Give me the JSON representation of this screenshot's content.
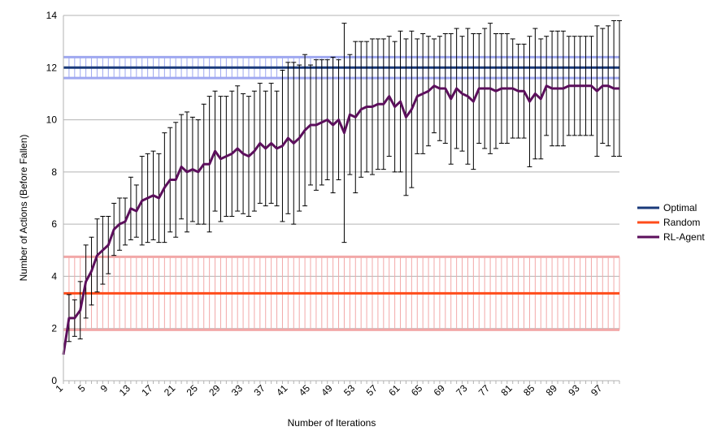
{
  "chart_data": {
    "type": "line",
    "xlabel": "Number of Iterations",
    "ylabel": "Number of Actions (Before Fallen)",
    "ylim": [
      0,
      14
    ],
    "yticks": [
      0,
      2,
      4,
      6,
      8,
      10,
      12,
      14
    ],
    "xlim": [
      1,
      100
    ],
    "xticks": [
      1,
      5,
      9,
      13,
      17,
      21,
      25,
      29,
      33,
      37,
      41,
      45,
      49,
      53,
      57,
      61,
      65,
      69,
      73,
      77,
      81,
      85,
      89,
      93,
      97
    ],
    "grid": "horizontal",
    "legend_position": "right",
    "series": [
      {
        "name": "Optimal",
        "color": "#1a3a7a",
        "band_color": "#9fa8f0",
        "value": 12,
        "error": 0.4
      },
      {
        "name": "Random",
        "color": "#ff4c1a",
        "band_color": "#f2a8a8",
        "value": 3.35,
        "error": 1.4
      },
      {
        "name": "RL-Agent",
        "color": "#5c0f5c",
        "x": [
          1,
          2,
          3,
          4,
          5,
          6,
          7,
          8,
          9,
          10,
          11,
          12,
          13,
          14,
          15,
          16,
          17,
          18,
          19,
          20,
          21,
          22,
          23,
          24,
          25,
          26,
          27,
          28,
          29,
          30,
          31,
          32,
          33,
          34,
          35,
          36,
          37,
          38,
          39,
          40,
          41,
          42,
          43,
          44,
          45,
          46,
          47,
          48,
          49,
          50,
          51,
          52,
          53,
          54,
          55,
          56,
          57,
          58,
          59,
          60,
          61,
          62,
          63,
          64,
          65,
          66,
          67,
          68,
          69,
          70,
          71,
          72,
          73,
          74,
          75,
          76,
          77,
          78,
          79,
          80,
          81,
          82,
          83,
          84,
          85,
          86,
          87,
          88,
          89,
          90,
          91,
          92,
          93,
          94,
          95,
          96,
          97,
          98,
          99,
          100
        ],
        "y": [
          1.0,
          2.4,
          2.4,
          2.7,
          3.8,
          4.2,
          4.8,
          5.0,
          5.2,
          5.8,
          6.0,
          6.1,
          6.6,
          6.5,
          6.9,
          7.0,
          7.1,
          7.0,
          7.4,
          7.7,
          7.7,
          8.2,
          8.0,
          8.1,
          8.0,
          8.3,
          8.3,
          8.8,
          8.5,
          8.6,
          8.7,
          8.9,
          8.7,
          8.6,
          8.8,
          9.1,
          8.9,
          9.1,
          8.9,
          9.0,
          9.3,
          9.1,
          9.3,
          9.6,
          9.8,
          9.8,
          9.9,
          10.0,
          9.8,
          10.0,
          9.5,
          10.2,
          10.1,
          10.4,
          10.5,
          10.5,
          10.6,
          10.6,
          10.9,
          10.5,
          10.7,
          10.1,
          10.4,
          10.9,
          11.0,
          11.1,
          11.3,
          11.2,
          11.2,
          10.8,
          11.2,
          11.0,
          10.9,
          10.7,
          11.2,
          11.2,
          11.2,
          11.1,
          11.2,
          11.2,
          11.2,
          11.1,
          11.1,
          10.7,
          11.0,
          10.8,
          11.3,
          11.2,
          11.2,
          11.2,
          11.3,
          11.3,
          11.3,
          11.3,
          11.3,
          11.1,
          11.3,
          11.3,
          11.2,
          11.2
        ],
        "err": [
          0.0,
          0.9,
          0.7,
          1.1,
          1.4,
          1.3,
          1.4,
          1.3,
          1.1,
          1.0,
          1.0,
          0.9,
          1.2,
          1.0,
          1.7,
          1.7,
          1.7,
          1.7,
          2.1,
          2.0,
          2.2,
          2.0,
          2.3,
          2.0,
          2.0,
          2.3,
          2.6,
          2.3,
          2.4,
          2.3,
          2.4,
          2.4,
          2.3,
          2.3,
          2.3,
          2.3,
          2.2,
          2.3,
          2.2,
          2.9,
          2.9,
          3.1,
          2.8,
          2.9,
          2.3,
          2.5,
          2.4,
          2.3,
          2.6,
          2.3,
          4.2,
          2.3,
          2.9,
          2.6,
          2.5,
          2.6,
          2.5,
          2.5,
          2.3,
          2.5,
          2.7,
          3.0,
          3.0,
          2.2,
          2.3,
          2.1,
          1.8,
          2.0,
          2.1,
          2.5,
          2.3,
          2.2,
          2.6,
          2.6,
          2.1,
          2.3,
          2.5,
          2.2,
          2.1,
          2.1,
          1.9,
          1.8,
          1.8,
          2.5,
          2.5,
          2.3,
          1.9,
          2.2,
          2.2,
          2.2,
          1.9,
          1.9,
          1.9,
          1.9,
          1.9,
          2.5,
          2.2,
          2.3,
          2.6,
          2.6
        ]
      }
    ]
  }
}
